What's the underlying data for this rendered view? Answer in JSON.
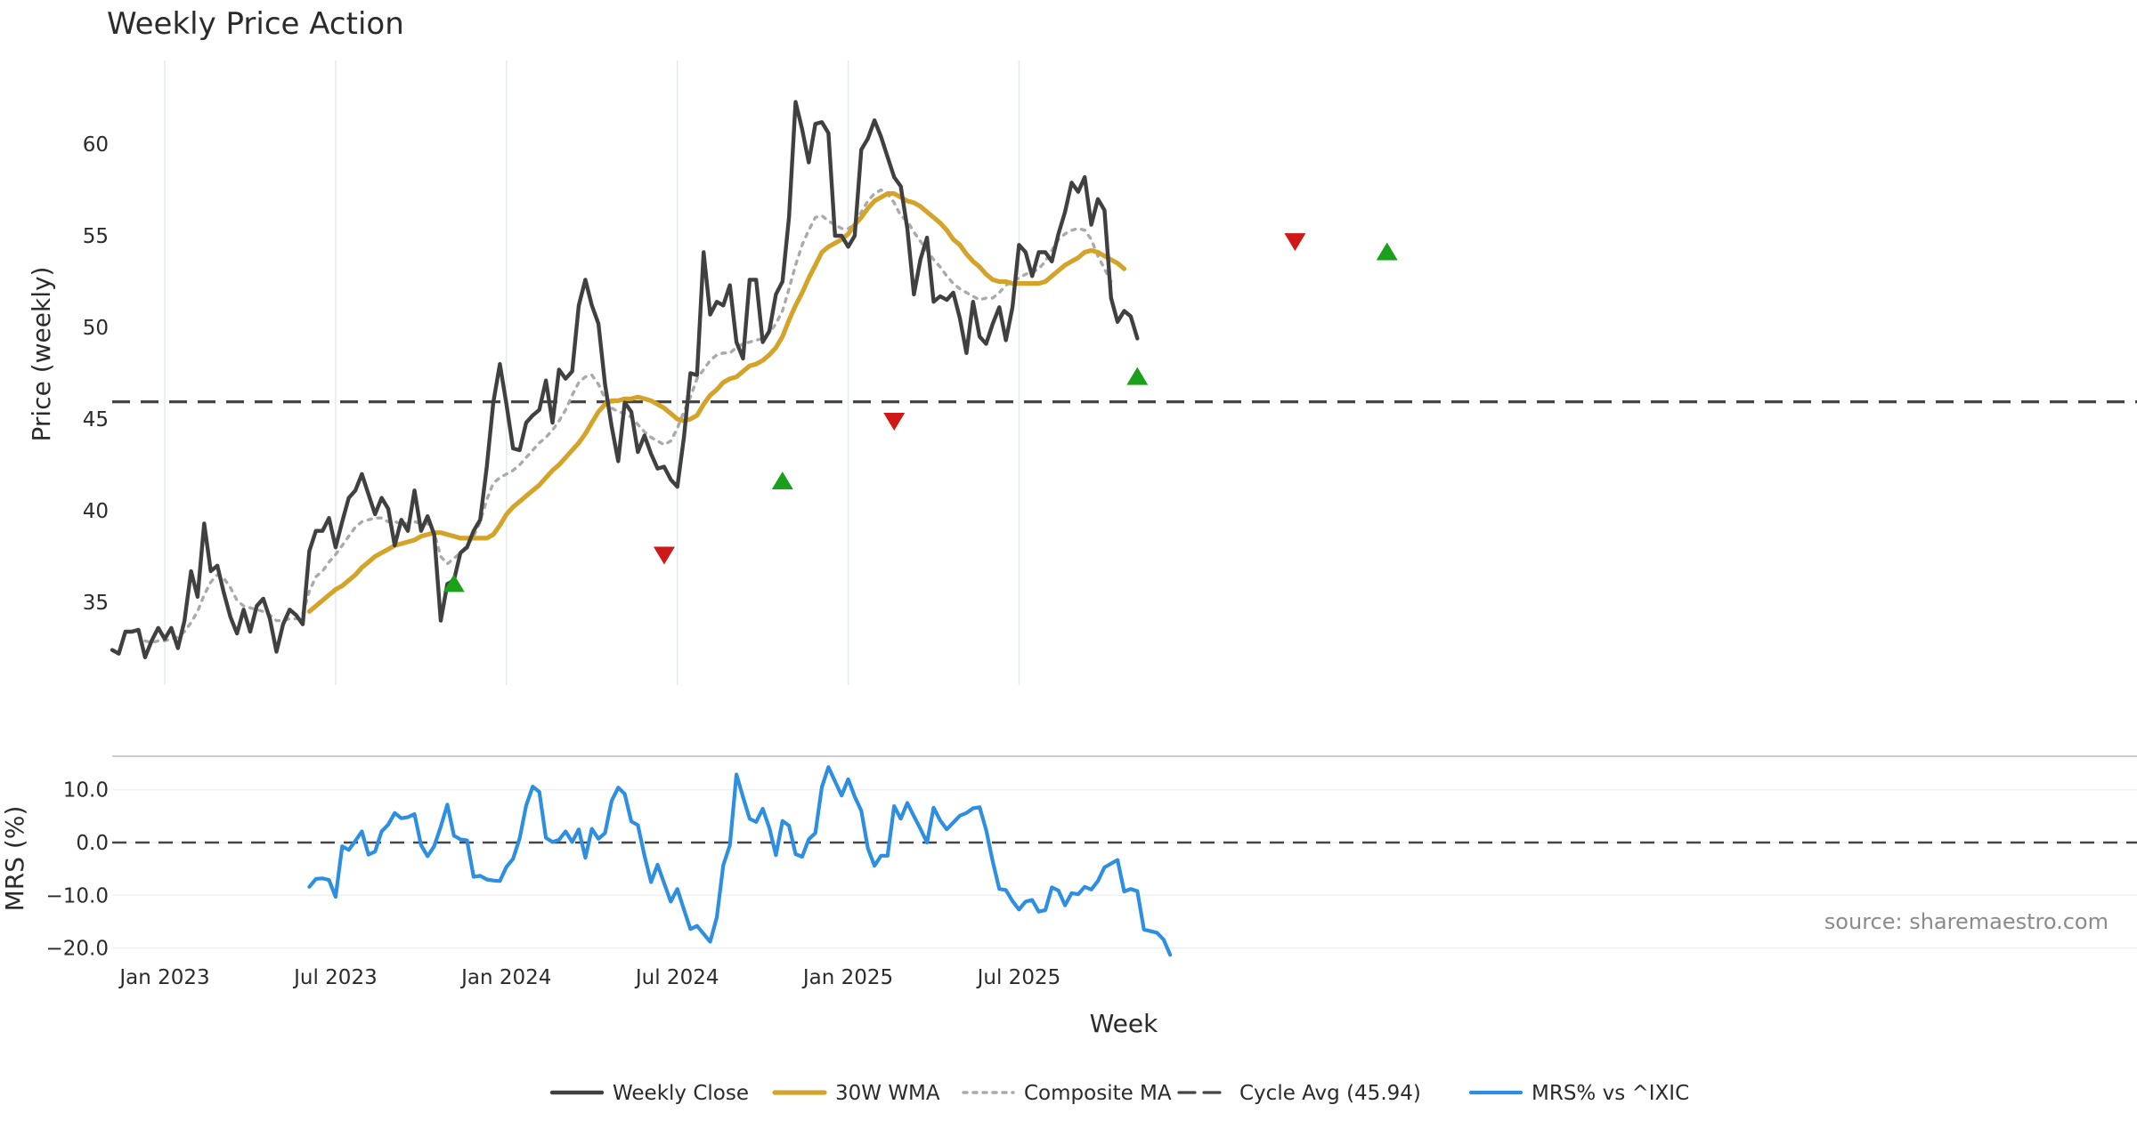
{
  "chart_data": {
    "type": "line",
    "title": "Weekly Price Action",
    "source": "source: sharemaestro.com",
    "xlabel": "Week",
    "x_ticks": [
      "Jan 2023",
      "Jul 2023",
      "Jan 2024",
      "Jul 2024",
      "Jan 2025",
      "Jul 2025"
    ],
    "x_range": [
      "2022-11-07",
      "2025-10-20"
    ],
    "price_panel": {
      "ylabel": "Price (weekly)",
      "ylim": [
        30.5,
        64
      ],
      "yticks": [
        "35",
        "40",
        "45",
        "50",
        "55",
        "60"
      ],
      "cycle_avg": 45.94,
      "grid": "vertical"
    },
    "mrs_panel": {
      "ylabel": "MRS (%)",
      "ylim": [
        -20.5,
        16
      ],
      "yticks": [
        "10.0",
        "0.0",
        "−10.0",
        "−20.0"
      ],
      "zero_line": 0
    },
    "series": [
      {
        "name": "Weekly Close",
        "color": "#404040",
        "style": "solid",
        "values": [
          32.4,
          32.2,
          33.4,
          33.4,
          33.5,
          32.0,
          32.9,
          33.6,
          33.0,
          33.6,
          32.5,
          34.0,
          36.7,
          35.3,
          39.3,
          36.7,
          37.0,
          35.5,
          34.2,
          33.3,
          34.6,
          33.4,
          34.8,
          35.2,
          34.1,
          32.3,
          33.8,
          34.6,
          34.3,
          33.8,
          37.8,
          38.9,
          38.9,
          39.6,
          38.0,
          39.4,
          40.7,
          41.1,
          42.0,
          40.9,
          39.8,
          40.7,
          40.1,
          38.1,
          39.5,
          38.9,
          41.1,
          38.9,
          39.7,
          38.7,
          34.0,
          36.0,
          36.2,
          37.7,
          38.0,
          38.9,
          39.5,
          42.4,
          45.9,
          48.0,
          45.8,
          43.4,
          43.3,
          44.8,
          45.2,
          45.5,
          47.1,
          44.8,
          47.7,
          47.2,
          47.6,
          51.2,
          52.6,
          51.2,
          50.2,
          46.9,
          44.6,
          42.7,
          45.9,
          45.4,
          43.2,
          44.1,
          43.1,
          42.3,
          42.4,
          41.7,
          41.3,
          44.0,
          47.5,
          47.4,
          54.1,
          50.7,
          51.4,
          51.2,
          52.3,
          49.2,
          48.3,
          52.6,
          52.6,
          49.2,
          49.8,
          51.8,
          52.5,
          56.0,
          62.3,
          60.8,
          59.0,
          61.1,
          61.2,
          60.6,
          55.0,
          55.0,
          54.4,
          55.0,
          59.7,
          60.3,
          61.3,
          60.4,
          59.3,
          58.2,
          57.7,
          55.4,
          51.8,
          53.7,
          54.9,
          51.4,
          51.7,
          51.5,
          51.9,
          50.5,
          48.6,
          51.4,
          49.5,
          49.1,
          50.2,
          51.1,
          49.3,
          51.1,
          54.5,
          54.1,
          52.8,
          54.1,
          54.1,
          53.6,
          55.1,
          56.3,
          57.9,
          57.4,
          58.2,
          55.6,
          57.0,
          56.4,
          51.6,
          50.3,
          50.9,
          50.6,
          49.4
        ]
      },
      {
        "name": "30W WMA",
        "color": "#d4a42a",
        "style": "solid",
        "start_index": 30,
        "values": [
          34.5,
          34.8,
          35.1,
          35.4,
          35.7,
          35.9,
          36.2,
          36.5,
          36.9,
          37.2,
          37.5,
          37.7,
          37.9,
          38.1,
          38.2,
          38.3,
          38.4,
          38.6,
          38.7,
          38.8,
          38.8,
          38.7,
          38.6,
          38.5,
          38.5,
          38.5,
          38.5,
          38.5,
          38.7,
          39.2,
          39.8,
          40.2,
          40.5,
          40.8,
          41.1,
          41.4,
          41.8,
          42.2,
          42.5,
          42.9,
          43.3,
          43.7,
          44.2,
          44.8,
          45.4,
          45.8,
          46.0,
          46.0,
          46.1,
          46.1,
          46.2,
          46.1,
          46.0,
          45.8,
          45.6,
          45.3,
          45.0,
          44.9,
          45.0,
          45.2,
          45.8,
          46.3,
          46.6,
          47.0,
          47.2,
          47.3,
          47.6,
          47.9,
          48.0,
          48.2,
          48.5,
          48.9,
          49.5,
          50.4,
          51.2,
          51.9,
          52.7,
          53.4,
          54.1,
          54.4,
          54.6,
          54.8,
          55.1,
          55.6,
          56.0,
          56.5,
          56.9,
          57.1,
          57.3,
          57.3,
          57.1,
          56.9,
          56.8,
          56.6,
          56.3,
          56.0,
          55.7,
          55.3,
          54.8,
          54.5,
          54.0,
          53.6,
          53.3,
          52.9,
          52.6,
          52.5,
          52.5,
          52.4,
          52.4,
          52.4,
          52.4,
          52.4,
          52.5,
          52.8,
          53.1,
          53.4,
          53.6,
          53.8,
          54.1,
          54.2,
          54.1,
          53.9,
          53.7,
          53.5,
          53.2
        ]
      },
      {
        "name": "Composite MA",
        "color": "#aaaaaa",
        "style": "dotted",
        "values": [
          null,
          null,
          null,
          null,
          null,
          32.9,
          32.8,
          32.9,
          32.9,
          33.0,
          33.1,
          33.4,
          33.9,
          34.5,
          35.4,
          36.1,
          36.5,
          36.3,
          35.8,
          35.1,
          34.8,
          34.7,
          34.6,
          34.5,
          34.3,
          34.0,
          34.0,
          34.1,
          34.1,
          34.4,
          35.6,
          36.4,
          36.7,
          37.2,
          37.6,
          38.1,
          38.6,
          39.1,
          39.4,
          39.5,
          39.6,
          39.6,
          39.4,
          39.4,
          39.3,
          39.3,
          39.4,
          39.3,
          39.3,
          38.8,
          37.5,
          37.1,
          37.4,
          37.7,
          38.1,
          38.6,
          39.4,
          40.6,
          41.5,
          41.8,
          42.0,
          42.2,
          42.5,
          42.9,
          43.3,
          43.7,
          44.0,
          44.4,
          44.9,
          45.5,
          46.3,
          47.0,
          47.3,
          47.4,
          46.9,
          46.1,
          45.6,
          45.4,
          45.3,
          45.1,
          44.7,
          44.3,
          44.0,
          43.8,
          43.6,
          43.8,
          44.5,
          45.4,
          46.2,
          47.2,
          47.7,
          48.2,
          48.5,
          48.6,
          48.6,
          48.9,
          49.1,
          49.2,
          49.3,
          49.4,
          49.7,
          50.2,
          50.9,
          52.1,
          53.4,
          54.5,
          55.3,
          56.0,
          56.1,
          55.8,
          55.6,
          55.4,
          55.4,
          55.6,
          56.3,
          56.9,
          57.3,
          57.5,
          57.3,
          56.8,
          56.1,
          55.8,
          55.2,
          54.7,
          54.2,
          53.7,
          53.3,
          52.8,
          52.4,
          52.1,
          51.9,
          51.7,
          51.5,
          51.6,
          51.6,
          51.9,
          52.3,
          52.5,
          52.7,
          52.9,
          53.0,
          53.2,
          53.6,
          54.2,
          54.8,
          55.1,
          55.3,
          55.4,
          55.3,
          54.8,
          53.9,
          53.2,
          52.5
        ]
      },
      {
        "name": "Cycle Avg (45.94)",
        "color": "#404040",
        "style": "dashed"
      },
      {
        "name": "MRS% vs ^IXIC",
        "color": "#2e8fe0",
        "style": "solid",
        "panel": "mrs",
        "start_index": 30,
        "values": [
          -8.4,
          -6.9,
          -6.8,
          -7.1,
          -10.3,
          -0.7,
          -1.4,
          0.3,
          2.1,
          -2.3,
          -1.7,
          2.1,
          3.4,
          5.6,
          4.6,
          4.8,
          5.4,
          -0.5,
          -2.6,
          -0.7,
          3.0,
          7.2,
          1.3,
          0.6,
          0.4,
          -6.5,
          -6.3,
          -7.0,
          -7.2,
          -7.3,
          -4.6,
          -3.1,
          0.8,
          7.0,
          10.6,
          9.6,
          0.9,
          0.1,
          0.5,
          2.1,
          0.1,
          2.5,
          -2.9,
          2.6,
          0.7,
          1.8,
          7.9,
          10.4,
          9.2,
          4.0,
          3.3,
          -2.5,
          -7.5,
          -4.2,
          -7.7,
          -11.2,
          -8.8,
          -12.7,
          -16.4,
          -15.8,
          -17.3,
          -18.8,
          -14.2,
          -4.3,
          -0.5,
          12.9,
          8.6,
          4.5,
          3.9,
          6.4,
          2.8,
          -2.4,
          4.1,
          3.2,
          -2.2,
          -2.7,
          0.6,
          1.8,
          10.5,
          14.3,
          11.6,
          8.9,
          12.0,
          8.7,
          6.0,
          -1.1,
          -4.4,
          -2.5,
          -2.5,
          6.9,
          4.5,
          7.5,
          5.0,
          2.6,
          0.0,
          6.6,
          4.2,
          2.5,
          3.8,
          5.1,
          5.6,
          6.5,
          6.7,
          2.4,
          -3.6,
          -8.8,
          -9.0,
          -11.1,
          -12.7,
          -11.2,
          -10.9,
          -13.1,
          -12.8,
          -8.5,
          -9.1,
          -11.9,
          -9.6,
          -9.8,
          -8.4,
          -8.9,
          -7.3,
          -4.7,
          -4.0,
          -3.3,
          -9.3,
          -8.8,
          -9.2,
          -16.5,
          -16.8,
          -17.1,
          -18.4,
          -21.3
        ]
      }
    ],
    "signals": {
      "buy": [
        [
          52,
          36.0
        ],
        [
          102,
          41.6
        ],
        [
          156,
          47.3
        ],
        [
          194,
          54.1
        ]
      ],
      "sell": [
        [
          84,
          37.6
        ],
        [
          119,
          44.9
        ],
        [
          180,
          54.7
        ]
      ]
    }
  }
}
